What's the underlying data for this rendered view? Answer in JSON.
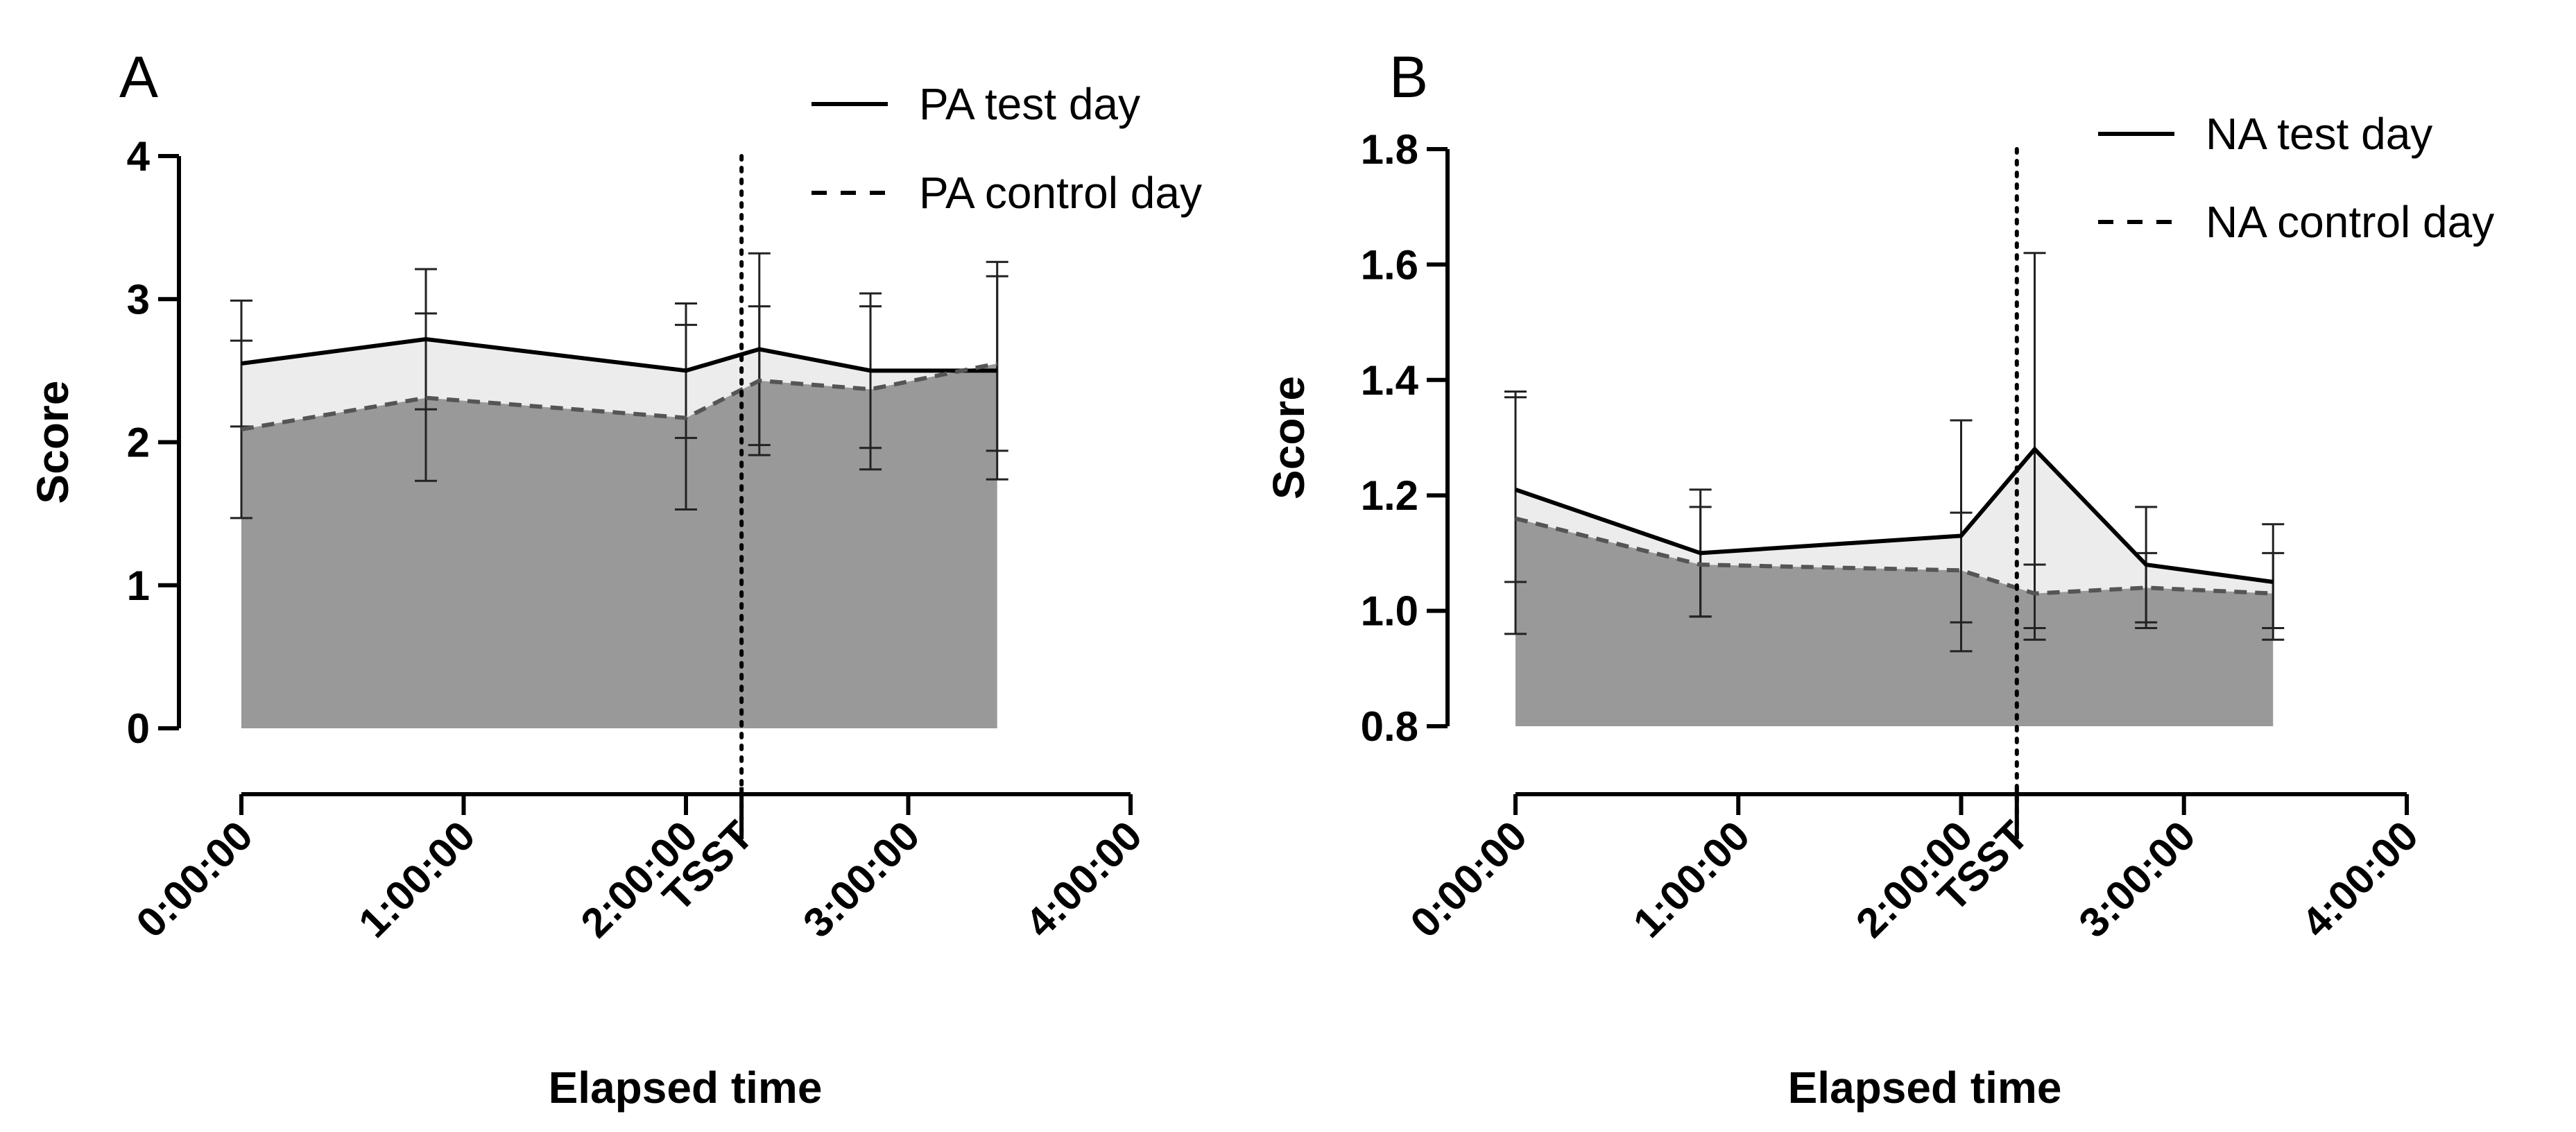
{
  "chart_data": [
    {
      "panel": "A",
      "type": "line",
      "title": "",
      "ylabel": "Score",
      "xlabel": "Elapsed time",
      "ylim": [
        0,
        4
      ],
      "yticks": [
        0,
        1,
        2,
        3,
        4
      ],
      "ytick_labels": [
        "0",
        "1",
        "2",
        "3",
        "4"
      ],
      "xlim_hours": [
        0,
        4
      ],
      "xtick_hours": [
        0,
        1,
        2,
        3,
        4
      ],
      "xtick_labels": [
        "0:00:00",
        "1:00:00",
        "2:00:00",
        "3:00:00",
        "4:00:00"
      ],
      "event_marker": {
        "label": "TSST",
        "x_hours": 2.25
      },
      "series": [
        {
          "name": "PA test day",
          "style": "solid",
          "x_hours": [
            0,
            0.83,
            2.0,
            2.33,
            2.83,
            3.4
          ],
          "values": [
            2.55,
            2.72,
            2.5,
            2.65,
            2.5,
            2.5
          ],
          "error_high": [
            2.99,
            3.21,
            2.97,
            3.32,
            3.04,
            3.26
          ],
          "error_low": [
            2.11,
            2.23,
            2.03,
            1.98,
            1.96,
            1.74
          ]
        },
        {
          "name": "PA control day",
          "style": "dashed",
          "x_hours": [
            0,
            0.83,
            2.0,
            2.33,
            2.83,
            3.4
          ],
          "values": [
            2.09,
            2.31,
            2.17,
            2.43,
            2.37,
            2.55
          ],
          "error_high": [
            2.71,
            2.9,
            2.82,
            2.95,
            2.95,
            3.16
          ],
          "error_low": [
            1.47,
            1.73,
            1.53,
            1.91,
            1.81,
            1.94
          ]
        }
      ]
    },
    {
      "panel": "B",
      "type": "line",
      "title": "",
      "ylabel": "Score",
      "xlabel": "Elapsed time",
      "ylim": [
        0.8,
        1.8
      ],
      "yticks": [
        0.8,
        1.0,
        1.2,
        1.4,
        1.6,
        1.8
      ],
      "ytick_labels": [
        "0.8",
        "1.0",
        "1.2",
        "1.4",
        "1.6",
        "1.8"
      ],
      "xlim_hours": [
        0,
        4
      ],
      "xtick_hours": [
        0,
        1,
        2,
        3,
        4
      ],
      "xtick_labels": [
        "0:00:00",
        "1:00:00",
        "2:00:00",
        "3:00:00",
        "4:00:00"
      ],
      "event_marker": {
        "label": "TSST",
        "x_hours": 2.25
      },
      "series": [
        {
          "name": "NA test day",
          "style": "solid",
          "x_hours": [
            0,
            0.83,
            2.0,
            2.33,
            2.83,
            3.4
          ],
          "values": [
            1.21,
            1.1,
            1.13,
            1.28,
            1.08,
            1.05
          ],
          "error_high": [
            1.38,
            1.21,
            1.33,
            1.62,
            1.18,
            1.15
          ],
          "error_low": [
            1.05,
            0.99,
            0.93,
            0.95,
            0.98,
            0.95
          ]
        },
        {
          "name": "NA control day",
          "style": "dashed",
          "x_hours": [
            0,
            0.83,
            2.0,
            2.33,
            2.83,
            3.4
          ],
          "values": [
            1.16,
            1.08,
            1.07,
            1.03,
            1.04,
            1.03
          ],
          "error_high": [
            1.37,
            1.18,
            1.17,
            1.08,
            1.1,
            1.1
          ],
          "error_low": [
            0.96,
            0.99,
            0.98,
            0.97,
            0.97,
            0.97
          ]
        }
      ]
    }
  ]
}
